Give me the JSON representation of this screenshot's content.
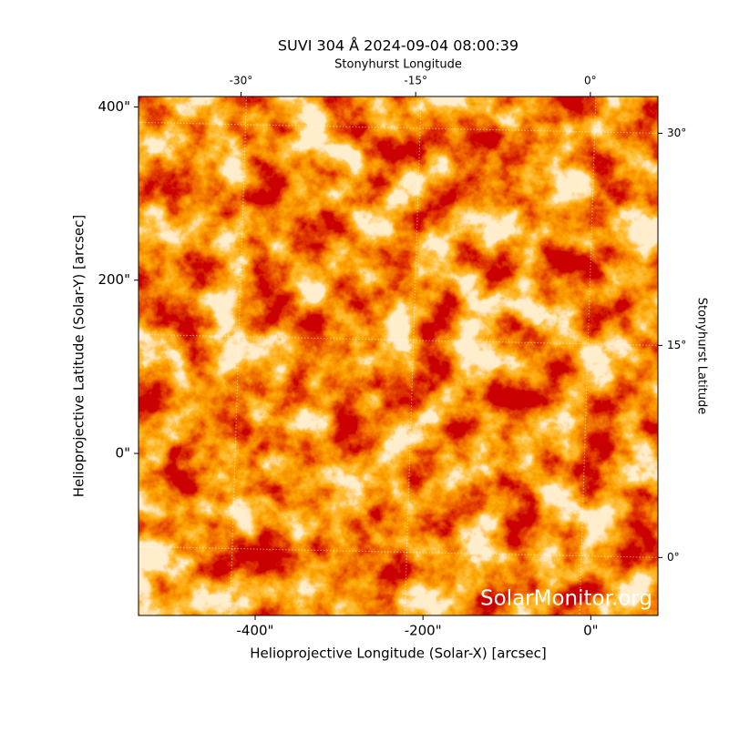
{
  "chart_data": {
    "type": "image",
    "title": "SUVI 304 Å 2024-09-04 08:00:39",
    "x_label": "Helioprojective Longitude (Solar-X) [arcsec]",
    "y_label": "Helioprojective Latitude (Solar-Y) [arcsec]",
    "x2_label": "Stonyhurst Longitude",
    "y2_label": "Stonyhurst Latitude",
    "watermark": "SolarMonitor.org",
    "xlim": [
      -539,
      80
    ],
    "ylim": [
      -187,
      412
    ],
    "xticks": [
      {
        "value": -400,
        "label": "-400\""
      },
      {
        "value": -200,
        "label": "-200\""
      },
      {
        "value": 0,
        "label": "0\""
      }
    ],
    "yticks": [
      {
        "value": 0,
        "label": "0\""
      },
      {
        "value": 200,
        "label": "200\""
      },
      {
        "value": 400,
        "label": "400\""
      }
    ],
    "x2lim": [
      -38.8,
      5.8
    ],
    "x2ticks": [
      {
        "value": -30,
        "label": "-30°"
      },
      {
        "value": -15,
        "label": "-15°"
      },
      {
        "value": 0,
        "label": "0°"
      }
    ],
    "y2lim": [
      -4.1,
      32.6
    ],
    "y2ticks": [
      {
        "value": 0,
        "label": "0°"
      },
      {
        "value": 15,
        "label": "15°"
      },
      {
        "value": 30,
        "label": "30°"
      }
    ],
    "grid": true
  }
}
